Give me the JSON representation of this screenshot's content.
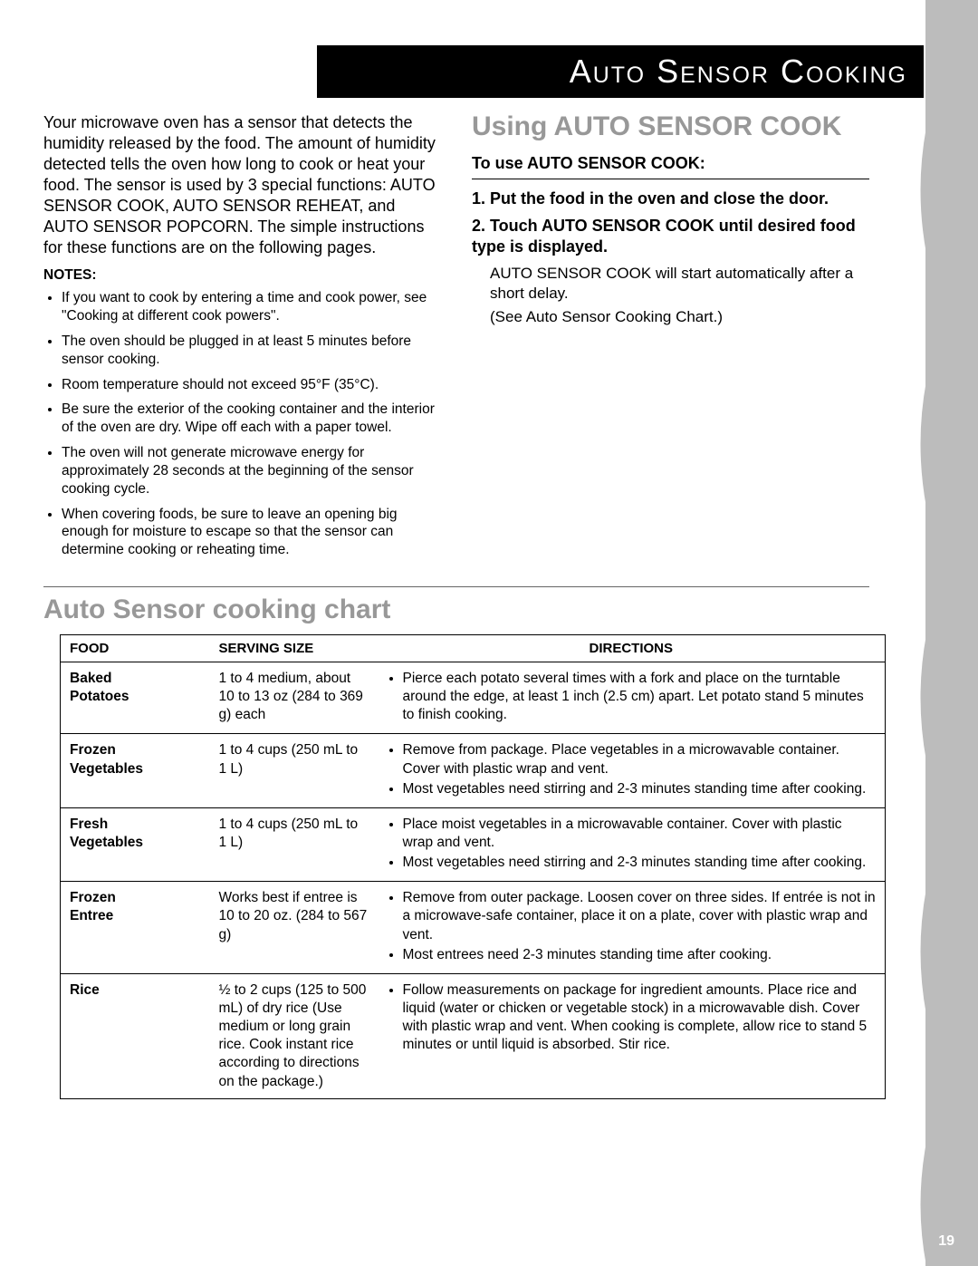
{
  "header": {
    "title": "Auto Sensor Cooking"
  },
  "intro": "Your microwave oven has a sensor that detects the humidity released by the food. The amount of humidity detected tells the oven how long to cook or heat your food. The sensor is used by 3 special functions: AUTO SENSOR COOK, AUTO SENSOR REHEAT, and AUTO SENSOR POPCORN. The simple instructions for these functions are on the following pages.",
  "notes_label": "NOTES:",
  "notes": [
    "If you want to cook by entering a time and cook power, see \"Cooking at different cook powers\".",
    "The oven should be plugged in at least 5 minutes before sensor cooking.",
    "Room temperature should not exceed 95°F (35°C).",
    "Be sure the exterior of the cooking container and the interior of the oven are dry. Wipe off each with a paper towel.",
    "The oven will not generate microwave energy for approximately 28 seconds at the beginning of the sensor cooking cycle.",
    "When covering foods, be sure to leave an opening big enough for moisture to escape so that the sensor can determine cooking or reheating time."
  ],
  "right": {
    "heading": "Using AUTO SENSOR COOK",
    "use_label": "To use AUTO SENSOR COOK:",
    "step1": "1. Put the food in the oven and close the door.",
    "step2": "2. Touch AUTO SENSOR COOK until desired food type is displayed.",
    "sub1": "AUTO SENSOR COOK will start automatically after a short delay.",
    "sub2": "(See Auto Sensor Cooking Chart.)"
  },
  "chart": {
    "heading": "Auto Sensor cooking chart",
    "columns": {
      "c1": "FOOD",
      "c2": "SERVING SIZE",
      "c3": "DIRECTIONS"
    },
    "rows": [
      {
        "food": "Baked Potatoes",
        "serving": "1 to 4 medium, about 10 to 13 oz (284 to 369 g) each",
        "directions": [
          "Pierce each potato several times with a fork and place on the turntable around the edge, at least 1 inch (2.5 cm) apart. Let potato stand 5 minutes to finish cooking."
        ]
      },
      {
        "food": "Frozen Vegetables",
        "serving": "1 to 4 cups (250 mL to 1 L)",
        "directions": [
          "Remove from package. Place vegetables in a microwavable container. Cover with plastic wrap and vent.",
          "Most vegetables need stirring and 2-3 minutes standing time after cooking."
        ]
      },
      {
        "food": "Fresh Vegetables",
        "serving": "1 to 4 cups (250 mL to 1 L)",
        "directions": [
          "Place moist vegetables in a microwavable container. Cover with plastic wrap and vent.",
          "Most vegetables need stirring and 2-3 minutes standing time after cooking."
        ]
      },
      {
        "food": "Frozen Entree",
        "serving": "Works best if entree is 10 to 20 oz. (284 to 567 g)",
        "directions": [
          "Remove from outer package. Loosen cover on three sides. If entrée is not in a microwave-safe container, place it on a plate, cover with plastic wrap and vent.",
          "Most entrees need 2-3 minutes standing time after cooking."
        ]
      },
      {
        "food": "Rice",
        "serving": "½ to 2 cups (125 to 500 mL) of dry rice (Use medium or long grain rice. Cook instant rice according to directions on the package.)",
        "directions": [
          "Follow measurements on package for ingredient amounts. Place rice and liquid (water or chicken or vegetable stock) in a microwavable dish. Cover with plastic wrap and vent. When cooking is complete, allow rice to stand 5 minutes or until liquid is absorbed. Stir rice."
        ]
      }
    ]
  },
  "page_number": "19",
  "colors": {
    "sidebar": "#bcbcbc",
    "heading_gray": "#989898",
    "black": "#000000",
    "white": "#ffffff"
  }
}
